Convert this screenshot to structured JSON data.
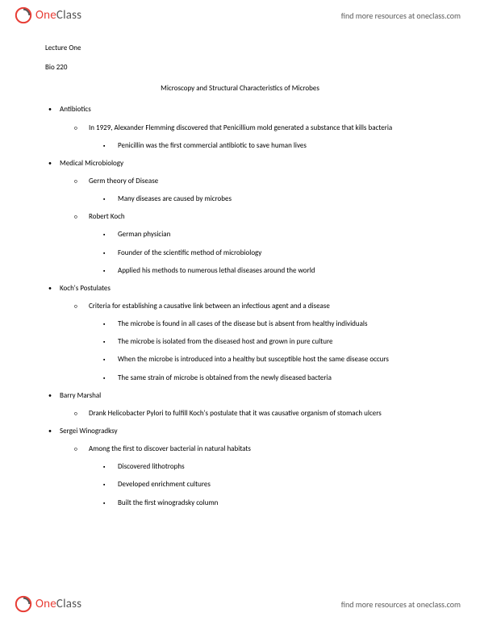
{
  "brand": {
    "one": "One",
    "class": "Class",
    "tagline": "find more resources at oneclass.com",
    "logo_color_red": "#e83e36",
    "logo_color_gray": "#565656"
  },
  "doc": {
    "lecture_label": "Lecture One",
    "course": "Bio 220",
    "title": "Microscopy and Structural Characteristics of Microbes"
  },
  "outline": [
    {
      "text": "Antibiotics",
      "children": [
        {
          "text": "In 1929, Alexander Flemming discovered that Penicillium mold generated a substance that kills bacteria",
          "children": [
            {
              "text": "Penicillin was the first commercial antibiotic to save human lives"
            }
          ]
        }
      ]
    },
    {
      "text": "Medical Microbiology",
      "children": [
        {
          "text": "Germ theory of Disease",
          "children": [
            {
              "text": "Many diseases are caused by microbes"
            }
          ]
        },
        {
          "text": "Robert Koch",
          "children": [
            {
              "text": "German physician"
            },
            {
              "text": "Founder of the scientific method of microbiology"
            },
            {
              "text": "Applied his methods to numerous lethal diseases around the world"
            }
          ]
        }
      ]
    },
    {
      "text": "Koch's Postulates",
      "children": [
        {
          "text": "Criteria for establishing a causative link between an infectious agent and a disease",
          "children": [
            {
              "text": "The microbe is found in all cases of the disease but is absent from healthy individuals"
            },
            {
              "text": "The microbe is isolated from the diseased host and grown in pure culture"
            },
            {
              "text": "When the microbe is introduced into a healthy but susceptible host the same disease occurs"
            },
            {
              "text": "The same strain of microbe is obtained from the newly diseased bacteria"
            }
          ]
        }
      ]
    },
    {
      "text": "Barry Marshal",
      "children": [
        {
          "text": "Drank Helicobacter Pylori to fulfill Koch's postulate that it was causative organism of stomach ulcers"
        }
      ]
    },
    {
      "text": "Sergei Winogradksy",
      "children": [
        {
          "text": "Among the first to discover bacterial in natural habitats",
          "children": [
            {
              "text": "Discovered lithotrophs"
            },
            {
              "text": "Developed enrichment cultures"
            },
            {
              "text": "Built the first winogradsky column"
            }
          ]
        }
      ]
    }
  ],
  "bullets": {
    "lvl1": "•",
    "lvl2": "○",
    "lvl3": "▪"
  }
}
